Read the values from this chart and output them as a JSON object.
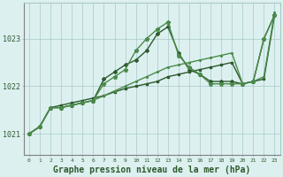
{
  "bg_color": "#ddf0f0",
  "grid_color": "#a8c8c8",
  "line_color_dark": "#2d5a2d",
  "line_color_mid": "#4a8a4a",
  "xlabel": "Graphe pression niveau de la mer (hPa)",
  "xlabel_fontsize": 7,
  "ylabel_ticks": [
    1021,
    1022,
    1023
  ],
  "xlim": [
    -0.5,
    23.5
  ],
  "ylim": [
    1020.55,
    1023.75
  ],
  "xtick_labels": [
    "0",
    "1",
    "2",
    "3",
    "4",
    "5",
    "6",
    "7",
    "8",
    "9",
    "10",
    "11",
    "12",
    "13",
    "14",
    "15",
    "16",
    "17",
    "18",
    "19",
    "20",
    "21",
    "22",
    "23"
  ],
  "series_linear": [
    1021.0,
    1021.15,
    1021.55,
    1021.6,
    1021.65,
    1021.7,
    1021.75,
    1021.8,
    1021.88,
    1021.95,
    1022.0,
    1022.05,
    1022.1,
    1022.2,
    1022.25,
    1022.3,
    1022.35,
    1022.4,
    1022.45,
    1022.5,
    1022.05,
    1022.1,
    1022.15,
    1023.5
  ],
  "series_peak1": [
    1021.0,
    1021.15,
    1021.55,
    1021.55,
    1021.6,
    1021.65,
    1021.7,
    1022.15,
    1022.3,
    1022.45,
    1022.55,
    1022.75,
    1023.1,
    1023.25,
    1022.7,
    1022.35,
    1022.25,
    1022.1,
    1022.1,
    1022.1,
    1022.05,
    1022.1,
    1023.0,
    1023.5
  ],
  "series_peak2": [
    1021.0,
    1021.15,
    1021.55,
    1021.55,
    1021.6,
    1021.65,
    1021.7,
    1022.05,
    1022.2,
    1022.35,
    1022.75,
    1023.0,
    1023.2,
    1023.35,
    1022.65,
    1022.4,
    1022.25,
    1022.05,
    1022.05,
    1022.05,
    1022.05,
    1022.1,
    1023.0,
    1023.5
  ],
  "series_flat": [
    1021.0,
    1021.15,
    1021.55,
    1021.55,
    1021.6,
    1021.65,
    1021.7,
    1021.8,
    1021.9,
    1022.0,
    1022.1,
    1022.2,
    1022.3,
    1022.4,
    1022.45,
    1022.5,
    1022.55,
    1022.6,
    1022.65,
    1022.7,
    1022.05,
    1022.1,
    1022.2,
    1023.55
  ]
}
